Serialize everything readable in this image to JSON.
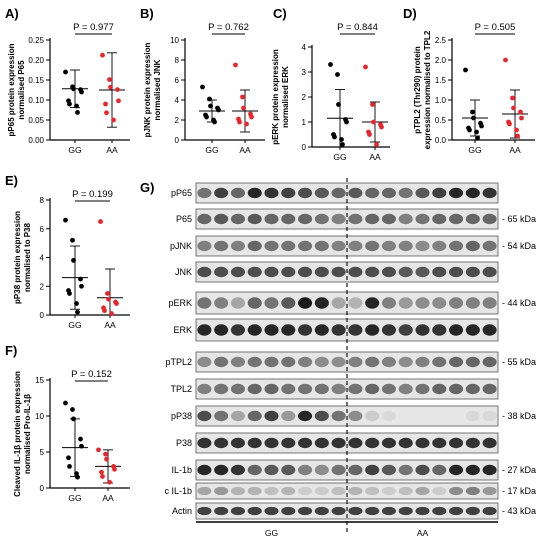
{
  "colors": {
    "GG": "#000000",
    "AA": "#e8262b",
    "axis": "#000000",
    "blot_bg": "#e6e6e6"
  },
  "charts": [
    {
      "panel": "A)",
      "type": "scatter",
      "p_text": "P = 0.977",
      "ylabel": [
        "pP65 protein expression",
        "normalised P65"
      ],
      "yticks": [
        "0.00",
        "0.05",
        "0.10",
        "0.15",
        "0.20",
        "0.25"
      ],
      "ylim": [
        0,
        0.25
      ],
      "categories": [
        "GG",
        "AA"
      ],
      "series": [
        {
          "group": "GG",
          "mean": 0.128,
          "sd": 0.047,
          "values": [
            0.17,
            0.133,
            0.128,
            0.126,
            0.12,
            0.098,
            0.09,
            0.085,
            0.069
          ]
        },
        {
          "group": "AA",
          "mean": 0.125,
          "sd": 0.093,
          "values": [
            0.212,
            0.151,
            0.132,
            0.126,
            0.098,
            0.09,
            0.068,
            0.05
          ]
        }
      ],
      "zero_line": false
    },
    {
      "panel": "B)",
      "type": "scatter",
      "p_text": "P = 0.762",
      "ylabel": [
        "pJNK protein expression",
        "normalised JNK"
      ],
      "yticks": [
        "0",
        "2",
        "4",
        "6",
        "8",
        "10"
      ],
      "ylim": [
        0,
        10
      ],
      "categories": [
        "GG",
        "AA"
      ],
      "series": [
        {
          "group": "GG",
          "mean": 2.9,
          "sd": 1.1,
          "values": [
            5.3,
            4.1,
            3.4,
            3.2,
            3.0,
            2.5,
            2.3,
            2.0,
            1.8
          ]
        },
        {
          "group": "AA",
          "mean": 2.9,
          "sd": 2.1,
          "values": [
            7.5,
            4.3,
            3.2,
            2.6,
            2.3,
            2.1,
            1.8,
            1.6
          ]
        }
      ],
      "zero_line": false
    },
    {
      "panel": "C)",
      "type": "scatter",
      "p_text": "P = 0.844",
      "ylabel": [
        "pERK protein expression",
        "normalised ERK"
      ],
      "yticks": [
        "0",
        "1",
        "2",
        "3",
        "4"
      ],
      "ylim": [
        0,
        4
      ],
      "categories": [
        "GG",
        "AA"
      ],
      "series": [
        {
          "group": "GG",
          "mean": 1.15,
          "sd": 1.15,
          "values": [
            3.3,
            2.9,
            1.7,
            1.1,
            1.0,
            0.5,
            0.4,
            0.3,
            0.1
          ]
        },
        {
          "group": "AA",
          "mean": 1.0,
          "sd": 0.8,
          "values": [
            3.2,
            1.7,
            1.0,
            0.9,
            0.8,
            0.6,
            0.5,
            0.1
          ]
        }
      ],
      "zero_line": true
    },
    {
      "panel": "D)",
      "type": "scatter",
      "p_text": "P = 0.505",
      "ylabel": [
        "pTPL2 (Thr290) protein",
        "expression normalised to TPL2"
      ],
      "yticks": [
        "0.0",
        "0.5",
        "1.0",
        "1.5",
        "2.0",
        "2.5"
      ],
      "ylim": [
        0,
        2.5
      ],
      "categories": [
        "GG",
        "AA"
      ],
      "series": [
        {
          "group": "GG",
          "mean": 0.55,
          "sd": 0.45,
          "values": [
            1.75,
            0.7,
            0.55,
            0.42,
            0.35,
            0.3,
            0.25,
            0.2,
            0.05
          ]
        },
        {
          "group": "AA",
          "mean": 0.65,
          "sd": 0.6,
          "values": [
            2.0,
            1.05,
            0.8,
            0.7,
            0.55,
            0.45,
            0.4,
            0.25,
            0.1
          ]
        }
      ],
      "zero_line": true
    },
    {
      "panel": "E)",
      "type": "scatter",
      "p_text": "P = 0.199",
      "ylabel": [
        "pP38 protein expression",
        "normalised to P38"
      ],
      "yticks": [
        "0",
        "2",
        "4",
        "6",
        "8"
      ],
      "ylim": [
        0,
        8
      ],
      "categories": [
        "GG",
        "AA"
      ],
      "series": [
        {
          "group": "GG",
          "mean": 2.6,
          "sd": 2.2,
          "values": [
            6.6,
            5.2,
            3.8,
            2.5,
            2.0,
            1.7,
            1.5,
            0.8,
            0.2
          ]
        },
        {
          "group": "AA",
          "mean": 1.2,
          "sd": 2.0,
          "values": [
            6.5,
            1.5,
            1.1,
            0.9,
            0.8,
            0.5,
            0.3,
            0.1
          ]
        }
      ],
      "zero_line": false
    },
    {
      "panel": "F)",
      "type": "scatter",
      "p_text": "P = 0.152",
      "ylabel": [
        "Cleaved IL-1β protein expression",
        "normalised Pro-IL-1β"
      ],
      "yticks": [
        "0",
        "5",
        "10",
        "15"
      ],
      "ylim": [
        0,
        15
      ],
      "categories": [
        "GG",
        "AA"
      ],
      "series": [
        {
          "group": "GG",
          "mean": 5.6,
          "sd": 4.0,
          "values": [
            11.8,
            10.9,
            9.6,
            6.8,
            5.8,
            4.2,
            3.0,
            2.0,
            1.5
          ]
        },
        {
          "group": "AA",
          "mean": 3.0,
          "sd": 2.3,
          "values": [
            5.3,
            4.7,
            4.0,
            3.0,
            2.6,
            2.2,
            1.6,
            0.8
          ]
        }
      ],
      "zero_line": false
    }
  ],
  "blot": {
    "panel": "G)",
    "group_labels": [
      "GG",
      "AA"
    ],
    "lanes": 18,
    "rows": [
      {
        "label": "pP65",
        "kda": "",
        "group": 0,
        "intensity": [
          0.55,
          0.75,
          0.6,
          0.85,
          0.8,
          0.75,
          0.7,
          0.65,
          0.6,
          0.65,
          0.6,
          0.6,
          0.55,
          0.65,
          0.75,
          0.85,
          0.85,
          0.8
        ]
      },
      {
        "label": "P65",
        "kda": "- 65 kDa",
        "group": 0,
        "intensity": [
          0.6,
          0.65,
          0.6,
          0.65,
          0.6,
          0.6,
          0.6,
          0.55,
          0.5,
          0.55,
          0.6,
          0.6,
          0.5,
          0.55,
          0.6,
          0.6,
          0.6,
          0.6
        ]
      },
      {
        "label": "pJNK",
        "kda": "- 54 kDa",
        "group": 1,
        "intensity": [
          0.5,
          0.55,
          0.5,
          0.6,
          0.55,
          0.55,
          0.55,
          0.55,
          0.5,
          0.5,
          0.55,
          0.5,
          0.5,
          0.45,
          0.5,
          0.55,
          0.6,
          0.55
        ]
      },
      {
        "label": "JNK",
        "kda": "",
        "group": 1,
        "intensity": [
          0.7,
          0.7,
          0.7,
          0.7,
          0.7,
          0.7,
          0.7,
          0.7,
          0.7,
          0.7,
          0.7,
          0.7,
          0.65,
          0.65,
          0.7,
          0.7,
          0.7,
          0.7
        ]
      },
      {
        "label": "pERK",
        "kda": "- 44 kDa",
        "group": 2,
        "intensity": [
          0.55,
          0.5,
          0.35,
          0.6,
          0.55,
          0.65,
          0.9,
          0.85,
          0.35,
          0.3,
          0.85,
          0.5,
          0.4,
          0.45,
          0.45,
          0.5,
          0.5,
          0.5
        ]
      },
      {
        "label": "ERK",
        "kda": "",
        "group": 2,
        "intensity": [
          0.85,
          0.85,
          0.8,
          0.85,
          0.85,
          0.85,
          0.8,
          0.85,
          0.8,
          0.8,
          0.85,
          0.8,
          0.75,
          0.8,
          0.8,
          0.85,
          0.85,
          0.85
        ]
      },
      {
        "label": "pTPL2",
        "kda": "- 55 kDa",
        "group": 3,
        "intensity": [
          0.45,
          0.55,
          0.5,
          0.55,
          0.55,
          0.55,
          0.5,
          0.45,
          0.45,
          0.5,
          0.55,
          0.5,
          0.45,
          0.5,
          0.55,
          0.6,
          0.6,
          0.6
        ]
      },
      {
        "label": "TPL2",
        "kda": "",
        "group": 3,
        "intensity": [
          0.5,
          0.55,
          0.55,
          0.6,
          0.6,
          0.55,
          0.55,
          0.55,
          0.5,
          0.55,
          0.6,
          0.55,
          0.5,
          0.55,
          0.6,
          0.6,
          0.6,
          0.6
        ]
      },
      {
        "label": "pP38",
        "kda": "- 38 kDa",
        "group": 4,
        "intensity": [
          0.7,
          0.55,
          0.35,
          0.6,
          0.75,
          0.4,
          0.85,
          0.7,
          0.55,
          0.45,
          0.2,
          0.15,
          0.1,
          0.1,
          0.1,
          0.1,
          0.15,
          0.15
        ]
      },
      {
        "label": "P38",
        "kda": "",
        "group": 4,
        "intensity": [
          0.8,
          0.8,
          0.8,
          0.8,
          0.8,
          0.8,
          0.8,
          0.8,
          0.8,
          0.8,
          0.8,
          0.8,
          0.8,
          0.8,
          0.8,
          0.8,
          0.8,
          0.8
        ]
      },
      {
        "label": "IL-1b",
        "kda": "- 27 kDa",
        "group": 5,
        "intensity": [
          0.85,
          0.85,
          0.8,
          0.6,
          0.65,
          0.65,
          0.5,
          0.45,
          0.55,
          0.6,
          0.75,
          0.65,
          0.55,
          0.7,
          0.6,
          0.85,
          0.85,
          0.85
        ]
      },
      {
        "label": "c IL-1b",
        "kda": "- 17 kDa",
        "group": 5,
        "intensity": [
          0.35,
          0.4,
          0.3,
          0.3,
          0.25,
          0.3,
          0.2,
          0.2,
          0.25,
          0.3,
          0.25,
          0.2,
          0.25,
          0.35,
          0.2,
          0.45,
          0.5,
          0.4
        ]
      },
      {
        "label": "Actin",
        "kda": "- 43 kDa",
        "group": 6,
        "intensity": [
          0.75,
          0.75,
          0.75,
          0.75,
          0.75,
          0.75,
          0.75,
          0.75,
          0.75,
          0.75,
          0.75,
          0.75,
          0.75,
          0.75,
          0.75,
          0.75,
          0.75,
          0.75
        ]
      }
    ]
  }
}
